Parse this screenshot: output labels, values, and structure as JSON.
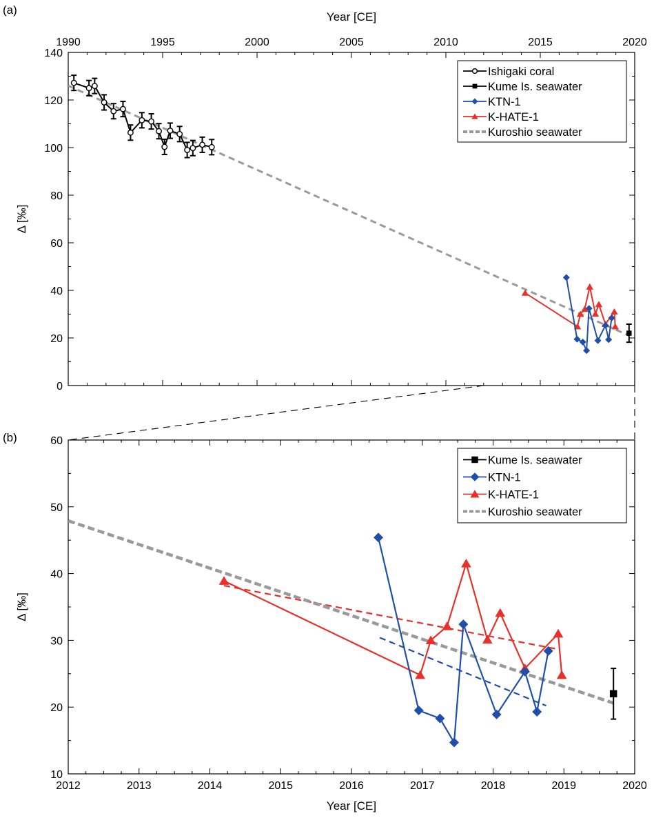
{
  "chart_data": [
    {
      "panel": "(a)",
      "type": "line",
      "xlabel": "Year [CE]",
      "ylabel": "Δ [‰]",
      "xlim": [
        1990,
        2020
      ],
      "ylim": [
        0,
        140
      ],
      "x_ticks": [
        1990,
        1995,
        2000,
        2005,
        2010,
        2015,
        2020
      ],
      "y_ticks": [
        0,
        20,
        40,
        60,
        80,
        100,
        120,
        140
      ],
      "x_axis_position": "top",
      "legend": "top-right",
      "grid": false,
      "series": [
        {
          "name": "Ishigaki coral",
          "color": "#000000",
          "marker": "open-circle",
          "error": 3.2,
          "x": [
            1990.3,
            1991.1,
            1991.4,
            1991.9,
            1992.4,
            1992.9,
            1993.3,
            1993.9,
            1994.4,
            1994.8,
            1995.1,
            1995.4,
            1995.9,
            1996.3,
            1996.6,
            1997.1,
            1997.6
          ],
          "y": [
            127.2,
            125.0,
            125.9,
            119.0,
            115.3,
            116.2,
            106.3,
            111.5,
            111.0,
            106.9,
            100.3,
            107.1,
            105.7,
            99.0,
            99.8,
            101.2,
            100.2
          ]
        },
        {
          "name": "Kume Is. seawater",
          "color": "#000000",
          "marker": "square",
          "x": [
            2019.7
          ],
          "y": [
            22.0
          ],
          "error": 3.8
        },
        {
          "name": "KTN-1",
          "color": "#1f4fa8",
          "marker": "diamond",
          "x": [
            2016.38,
            2016.95,
            2017.25,
            2017.45,
            2017.58,
            2018.05,
            2018.45,
            2018.62,
            2018.78
          ],
          "y": [
            45.4,
            19.5,
            18.3,
            14.7,
            32.4,
            18.9,
            25.3,
            19.3,
            28.4
          ]
        },
        {
          "name": "K-HATE-1",
          "color": "#e8302a",
          "marker": "triangle",
          "x": [
            2014.2,
            2016.97,
            2017.12,
            2017.35,
            2017.62,
            2017.92,
            2018.1,
            2018.45,
            2018.92,
            2018.97
          ],
          "y": [
            38.9,
            24.8,
            30.0,
            32.1,
            41.5,
            30.1,
            34.1,
            25.8,
            31.0,
            24.8
          ]
        },
        {
          "name": "Kuroshio seawater",
          "color": "#9a9a9a",
          "style": "dashed",
          "x": [
            1990,
            2019.7
          ],
          "y": [
            126,
            21
          ]
        }
      ]
    },
    {
      "panel": "(b)",
      "type": "line",
      "xlabel": "Year [CE]",
      "ylabel": "Δ [‰]",
      "xlim": [
        2012,
        2020
      ],
      "ylim": [
        10,
        60
      ],
      "x_ticks": [
        2012,
        2013,
        2014,
        2015,
        2016,
        2017,
        2018,
        2019,
        2020
      ],
      "y_ticks": [
        10,
        20,
        30,
        40,
        50,
        60
      ],
      "legend": "top-right",
      "grid": false,
      "series": [
        {
          "name": "Kume Is. seawater",
          "color": "#000000",
          "marker": "square",
          "x": [
            2019.7
          ],
          "y": [
            22.0
          ],
          "error": 3.8
        },
        {
          "name": "KTN-1",
          "color": "#1f4fa8",
          "marker": "diamond",
          "x": [
            2016.38,
            2016.95,
            2017.25,
            2017.45,
            2017.58,
            2018.05,
            2018.45,
            2018.62,
            2018.78
          ],
          "y": [
            45.4,
            19.5,
            18.3,
            14.7,
            32.4,
            18.9,
            25.3,
            19.3,
            28.4
          ]
        },
        {
          "name": "K-HATE-1",
          "color": "#e8302a",
          "marker": "triangle",
          "x": [
            2014.2,
            2016.97,
            2017.12,
            2017.35,
            2017.62,
            2017.92,
            2018.1,
            2018.45,
            2018.92,
            2018.97
          ],
          "y": [
            38.9,
            24.8,
            30.0,
            32.1,
            41.5,
            30.1,
            34.1,
            25.8,
            31.0,
            24.8
          ]
        },
        {
          "name": "Kuroshio seawater",
          "color": "#9a9a9a",
          "style": "dashed",
          "x": [
            2012,
            2019.7
          ],
          "y": [
            47.9,
            20.6
          ]
        }
      ],
      "trendlines": [
        {
          "color": "#1f4fa8",
          "x": [
            2016.4,
            2018.75
          ],
          "y": [
            30.4,
            20.2
          ]
        },
        {
          "color": "#e8302a",
          "x": [
            2014.2,
            2018.95
          ],
          "y": [
            38.2,
            28.6
          ]
        }
      ]
    }
  ]
}
